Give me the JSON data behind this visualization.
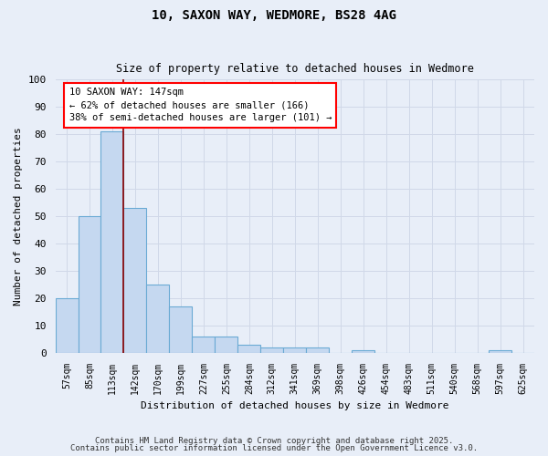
{
  "title1": "10, SAXON WAY, WEDMORE, BS28 4AG",
  "title2": "Size of property relative to detached houses in Wedmore",
  "xlabel": "Distribution of detached houses by size in Wedmore",
  "ylabel": "Number of detached properties",
  "categories": [
    "57sqm",
    "85sqm",
    "113sqm",
    "142sqm",
    "170sqm",
    "199sqm",
    "227sqm",
    "255sqm",
    "284sqm",
    "312sqm",
    "341sqm",
    "369sqm",
    "398sqm",
    "426sqm",
    "454sqm",
    "483sqm",
    "511sqm",
    "540sqm",
    "568sqm",
    "597sqm",
    "625sqm"
  ],
  "values": [
    20,
    50,
    81,
    53,
    25,
    17,
    6,
    6,
    3,
    2,
    2,
    2,
    0,
    1,
    0,
    0,
    0,
    0,
    0,
    1,
    0
  ],
  "bar_color": "#c5d8f0",
  "bar_edge_color": "#6aaad4",
  "red_line_index": 2.5,
  "annotation_text": "10 SAXON WAY: 147sqm\n← 62% of detached houses are smaller (166)\n38% of semi-detached houses are larger (101) →",
  "annotation_box_color": "white",
  "annotation_box_edge": "red",
  "ylim": [
    0,
    100
  ],
  "yticks": [
    0,
    10,
    20,
    30,
    40,
    50,
    60,
    70,
    80,
    90,
    100
  ],
  "grid_color": "#d0d8e8",
  "bg_color": "#e8eef8",
  "footer1": "Contains HM Land Registry data © Crown copyright and database right 2025.",
  "footer2": "Contains public sector information licensed under the Open Government Licence v3.0."
}
